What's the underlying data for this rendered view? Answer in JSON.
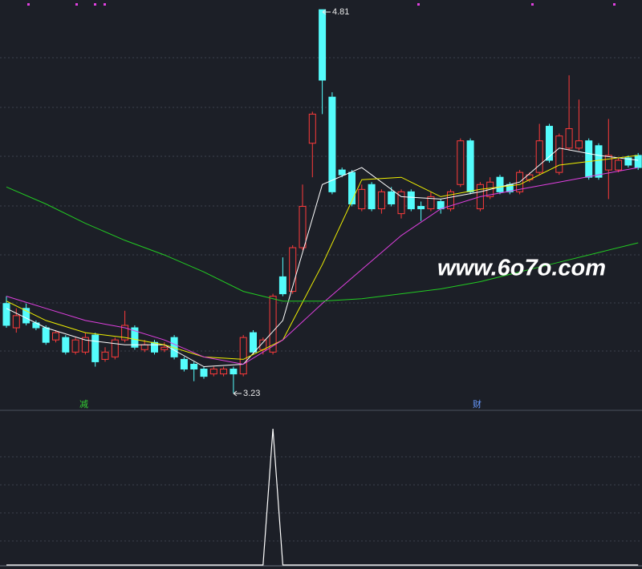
{
  "chart_data": {
    "type": "candlestick",
    "up_color": "#ff3b3b",
    "down_color": "#54fcfc",
    "ylim": [
      3.17,
      4.85
    ],
    "open": [
      3.6,
      3.5,
      3.58,
      3.52,
      3.5,
      3.45,
      3.46,
      3.4,
      3.4,
      3.47,
      3.37,
      3.38,
      3.45,
      3.5,
      3.41,
      3.44,
      3.41,
      3.46,
      3.37,
      3.35,
      3.33,
      3.31,
      3.31,
      3.33,
      3.31,
      3.48,
      3.41,
      3.4,
      3.71,
      3.65,
      3.83,
      4.26,
      4.81,
      4.45,
      4.15,
      4.14,
      3.99,
      4.09,
      3.99,
      4.06,
      3.97,
      4.06,
      4.0,
      3.99,
      4.02,
      3.99,
      4.09,
      4.27,
      3.99,
      4.04,
      4.12,
      4.09,
      4.06,
      4.11,
      4.14,
      4.33,
      4.14,
      4.24,
      4.24,
      4.27,
      4.25,
      4.15,
      4.15,
      4.2,
      4.21
    ],
    "close": [
      3.51,
      3.55,
      3.52,
      3.5,
      3.44,
      3.48,
      3.4,
      3.45,
      3.46,
      3.36,
      3.4,
      3.45,
      3.51,
      3.42,
      3.43,
      3.4,
      3.42,
      3.38,
      3.33,
      3.33,
      3.3,
      3.33,
      3.33,
      3.31,
      3.46,
      3.4,
      3.45,
      3.63,
      3.64,
      3.83,
      4.0,
      4.38,
      4.52,
      4.06,
      4.13,
      4.01,
      4.07,
      3.99,
      4.06,
      4.01,
      4.06,
      3.99,
      3.99,
      4.04,
      3.99,
      4.06,
      4.27,
      4.06,
      4.09,
      4.1,
      4.06,
      4.06,
      4.14,
      4.13,
      4.27,
      4.19,
      4.29,
      4.32,
      4.27,
      4.12,
      4.12,
      4.21,
      4.19,
      4.17,
      4.16
    ],
    "high": [
      3.63,
      3.58,
      3.6,
      3.53,
      3.51,
      3.49,
      3.47,
      3.46,
      3.48,
      3.48,
      3.42,
      3.46,
      3.57,
      3.51,
      3.45,
      3.45,
      3.44,
      3.47,
      3.38,
      3.36,
      3.34,
      3.34,
      3.34,
      3.34,
      3.47,
      3.49,
      3.46,
      3.64,
      3.79,
      3.84,
      4.09,
      4.39,
      4.81,
      4.47,
      4.16,
      4.15,
      4.09,
      4.1,
      4.07,
      4.08,
      4.07,
      4.07,
      4.02,
      4.06,
      4.03,
      4.07,
      4.28,
      4.28,
      4.1,
      4.12,
      4.13,
      4.1,
      4.15,
      4.14,
      4.34,
      4.34,
      4.3,
      4.54,
      4.44,
      4.28,
      4.26,
      4.36,
      4.2,
      4.21,
      4.22
    ],
    "low": [
      3.5,
      3.48,
      3.51,
      3.49,
      3.43,
      3.44,
      3.39,
      3.39,
      3.39,
      3.34,
      3.36,
      3.37,
      3.44,
      3.41,
      3.4,
      3.39,
      3.4,
      3.37,
      3.32,
      3.28,
      3.29,
      3.3,
      3.3,
      3.23,
      3.3,
      3.39,
      3.39,
      3.39,
      3.63,
      3.64,
      3.82,
      4.12,
      4.38,
      4.05,
      4.12,
      4.0,
      3.98,
      3.98,
      3.97,
      4.0,
      3.95,
      3.98,
      3.94,
      3.98,
      3.97,
      3.98,
      4.08,
      4.05,
      3.98,
      4.03,
      4.05,
      4.05,
      4.05,
      4.1,
      4.13,
      4.18,
      4.13,
      4.23,
      4.23,
      4.11,
      4.11,
      4.03,
      4.14,
      4.16,
      4.15
    ],
    "series": [
      {
        "color": "#ffffff",
        "values": [
          3.58,
          3.5,
          3.45,
          3.43,
          3.43,
          3.34,
          3.35,
          3.53,
          4.09,
          4.16,
          4.04,
          4.03,
          4.06,
          4.1,
          4.24,
          4.21,
          4.19
        ]
      },
      {
        "color": "#f0f000",
        "values": [
          3.61,
          3.53,
          3.48,
          3.46,
          3.43,
          3.38,
          3.37,
          3.45,
          3.76,
          4.11,
          4.12,
          4.04,
          4.07,
          4.09,
          4.17,
          4.19,
          4.21
        ]
      },
      {
        "color": "#e040e0",
        "values": [
          3.63,
          3.58,
          3.53,
          3.5,
          3.45,
          3.38,
          3.35,
          3.45,
          3.6,
          3.74,
          3.88,
          3.99,
          4.04,
          4.07,
          4.1,
          4.13,
          4.16
        ]
      },
      {
        "color": "#22cc22",
        "values": [
          4.08,
          4.01,
          3.93,
          3.86,
          3.8,
          3.73,
          3.65,
          3.61,
          3.61,
          3.62,
          3.64,
          3.66,
          3.69,
          3.73,
          3.77,
          3.81,
          3.85
        ]
      }
    ],
    "high_label": 4.81,
    "low_label": 3.23,
    "markers": [
      "减",
      "财"
    ],
    "watermark": "www.6o7o.com",
    "indicator": {
      "color": "#ffffff",
      "ylim": [
        0,
        1
      ],
      "values": [
        0,
        0,
        0,
        0,
        0,
        0,
        0,
        0,
        0,
        0,
        0,
        0,
        0,
        0,
        0,
        0,
        0,
        0,
        0,
        0,
        0,
        0,
        0,
        0,
        0,
        0,
        0,
        1,
        0,
        0,
        0,
        0,
        0,
        0,
        0,
        0,
        0,
        0,
        0,
        0,
        0,
        0,
        0,
        0,
        0,
        0,
        0,
        0,
        0,
        0,
        0,
        0,
        0,
        0,
        0,
        0,
        0,
        0,
        0,
        0,
        0,
        0,
        0,
        0,
        0
      ]
    }
  }
}
